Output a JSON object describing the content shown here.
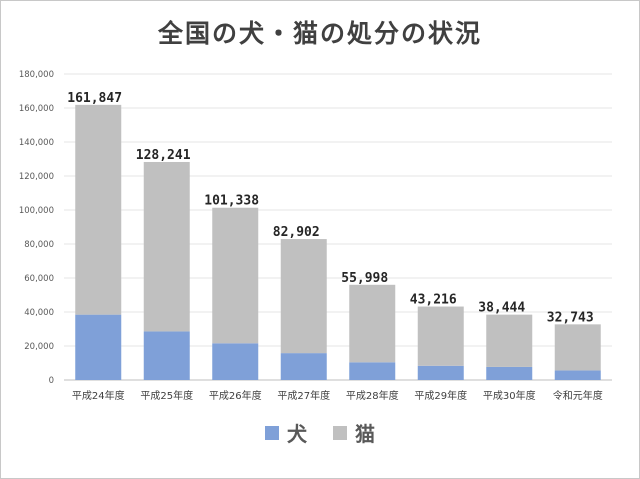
{
  "chart_data": {
    "type": "bar",
    "stacked": true,
    "title": "全国の犬・猫の処分の状況",
    "categories": [
      "平成24年度",
      "平成25年度",
      "平成26年度",
      "平成27年度",
      "平成28年度",
      "平成29年度",
      "平成30年度",
      "令和元年度"
    ],
    "series": [
      {
        "name": "犬",
        "color": "#7fa0d8",
        "values": [
          38447,
          28570,
          21593,
          15811,
          10424,
          8362,
          7687,
          5635
        ]
      },
      {
        "name": "猫",
        "color": "#c0c0c0",
        "values": [
          123400,
          99671,
          79745,
          67091,
          45574,
          34854,
          30757,
          27108
        ]
      }
    ],
    "totals": [
      161847,
      128241,
      101338,
      82902,
      55998,
      43216,
      38444,
      32743
    ],
    "total_labels": [
      "161,847",
      "128,241",
      "101,338",
      "82,902",
      "55,998",
      "43,216",
      "38,444",
      "32,743"
    ],
    "ylim": [
      0,
      180000
    ],
    "yticks": [
      0,
      20000,
      40000,
      60000,
      80000,
      100000,
      120000,
      140000,
      160000,
      180000
    ],
    "ytick_labels": [
      "0",
      "20,000",
      "40,000",
      "60,000",
      "80,000",
      "100,000",
      "120,000",
      "140,000",
      "160,000",
      "180,000"
    ],
    "grid": true,
    "legend_position": "bottom"
  }
}
